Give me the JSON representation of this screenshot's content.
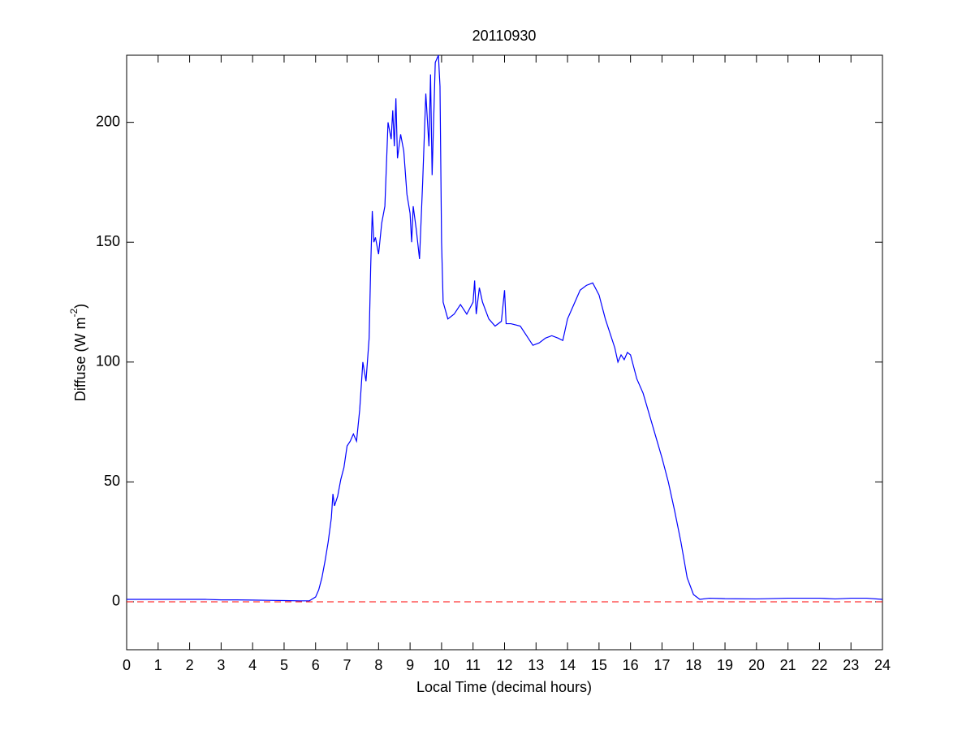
{
  "chart_data": {
    "type": "line",
    "title": "20110930",
    "xlabel": "Local Time (decimal hours)",
    "ylabel": {
      "text": "Diffuse (W m",
      "superscript": "-2",
      "suffix": ")"
    },
    "xlim": [
      0,
      24
    ],
    "xticks": [
      0,
      1,
      2,
      3,
      4,
      5,
      6,
      7,
      8,
      9,
      10,
      11,
      12,
      13,
      14,
      15,
      16,
      17,
      18,
      19,
      20,
      21,
      22,
      23,
      24
    ],
    "ylim": [
      -20,
      228
    ],
    "yticks": [
      0,
      50,
      100,
      150,
      200
    ],
    "reference_line": {
      "value": 0,
      "color": "#ff0000",
      "style": "dashed"
    },
    "series": [
      {
        "name": "Diffuse",
        "color": "#0000ff",
        "x": [
          0,
          0.5,
          1,
          1.5,
          2,
          2.5,
          3,
          3.5,
          4,
          4.5,
          5,
          5.5,
          5.8,
          6.0,
          6.1,
          6.2,
          6.3,
          6.4,
          6.5,
          6.55,
          6.6,
          6.7,
          6.8,
          6.9,
          7.0,
          7.1,
          7.2,
          7.3,
          7.4,
          7.5,
          7.6,
          7.7,
          7.75,
          7.8,
          7.85,
          7.9,
          8.0,
          8.1,
          8.2,
          8.3,
          8.4,
          8.45,
          8.5,
          8.55,
          8.6,
          8.7,
          8.8,
          8.9,
          9.0,
          9.05,
          9.1,
          9.2,
          9.3,
          9.4,
          9.5,
          9.6,
          9.65,
          9.7,
          9.8,
          9.9,
          9.95,
          10.0,
          10.05,
          10.2,
          10.4,
          10.6,
          10.8,
          11.0,
          11.05,
          11.1,
          11.2,
          11.3,
          11.5,
          11.7,
          11.9,
          12.0,
          12.05,
          12.2,
          12.5,
          12.7,
          12.9,
          13.1,
          13.3,
          13.5,
          13.7,
          13.85,
          14.0,
          14.2,
          14.4,
          14.6,
          14.8,
          15.0,
          15.2,
          15.4,
          15.5,
          15.6,
          15.7,
          15.8,
          15.9,
          16.0,
          16.2,
          16.4,
          16.6,
          16.8,
          17.0,
          17.2,
          17.4,
          17.6,
          17.8,
          18.0,
          18.2,
          18.5,
          19,
          20,
          21,
          22,
          22.5,
          23,
          23.5,
          24
        ],
        "values": [
          1,
          1,
          1,
          1,
          1,
          1,
          0.8,
          0.8,
          0.7,
          0.6,
          0.5,
          0.4,
          0.4,
          2,
          5,
          10,
          17,
          25,
          35,
          45,
          40,
          44,
          51,
          56,
          65,
          67,
          70,
          67,
          80,
          100,
          92,
          110,
          140,
          163,
          150,
          152,
          145,
          158,
          165,
          200,
          193,
          205,
          190,
          210,
          185,
          195,
          188,
          170,
          162,
          150,
          165,
          155,
          143,
          175,
          212,
          190,
          220,
          178,
          225,
          228,
          215,
          150,
          125,
          118,
          120,
          124,
          120,
          125,
          134,
          120,
          131,
          125,
          118,
          115,
          117,
          130,
          116,
          116,
          115,
          111,
          107,
          108,
          110,
          111,
          110,
          109,
          118,
          124,
          130,
          132,
          133,
          128,
          118,
          110,
          106,
          100,
          103,
          101,
          104,
          103,
          93,
          87,
          78,
          69,
          60,
          50,
          38,
          25,
          10,
          3,
          1,
          1.5,
          1.3,
          1.2,
          1.5,
          1.5,
          1.2,
          1.5,
          1.5,
          1
        ]
      }
    ]
  }
}
